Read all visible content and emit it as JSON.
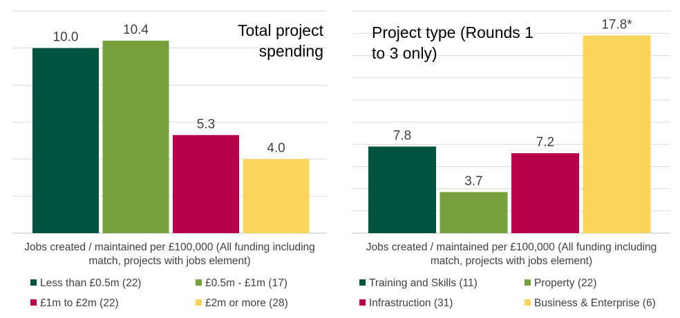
{
  "chart_data": [
    {
      "type": "bar",
      "title_lines": [
        "Total project",
        "spending"
      ],
      "xlabel_lines": [
        "Jobs created / maintained per £100,000 (All funding including",
        "match, projects with jobs element)"
      ],
      "categories": [
        "Less than £0.5m (22)",
        "£0.5m - £1m (17)",
        "£1m to £2m (22)",
        "£2m or more (28)"
      ],
      "values": [
        10.0,
        10.4,
        5.3,
        4.0
      ],
      "value_labels": [
        "10.0",
        "10.4",
        "5.3",
        "4.0"
      ],
      "colors": [
        "#00543f",
        "#76a03b",
        "#b5004b",
        "#fdd45a"
      ],
      "ylim": [
        0,
        12
      ],
      "grid_step": 2,
      "grid": true,
      "legend_position": "bottom"
    },
    {
      "type": "bar",
      "title_lines": [
        "Project type (Rounds 1",
        "to 3 only)"
      ],
      "xlabel_lines": [
        "Jobs created / maintained per £100,000 (All funding including",
        "match, projects with jobs element)"
      ],
      "categories": [
        "Training and Skills (11)",
        "Property (22)",
        "Infrastruction (31)",
        "Business & Enterprise (6)"
      ],
      "values": [
        7.8,
        3.7,
        7.2,
        17.8
      ],
      "value_labels": [
        "7.8",
        "3.7",
        "7.2",
        "17.8*"
      ],
      "colors": [
        "#00543f",
        "#76a03b",
        "#b5004b",
        "#fdd45a"
      ],
      "ylim": [
        0,
        20
      ],
      "grid_step": 2,
      "grid": true,
      "legend_position": "bottom"
    }
  ]
}
